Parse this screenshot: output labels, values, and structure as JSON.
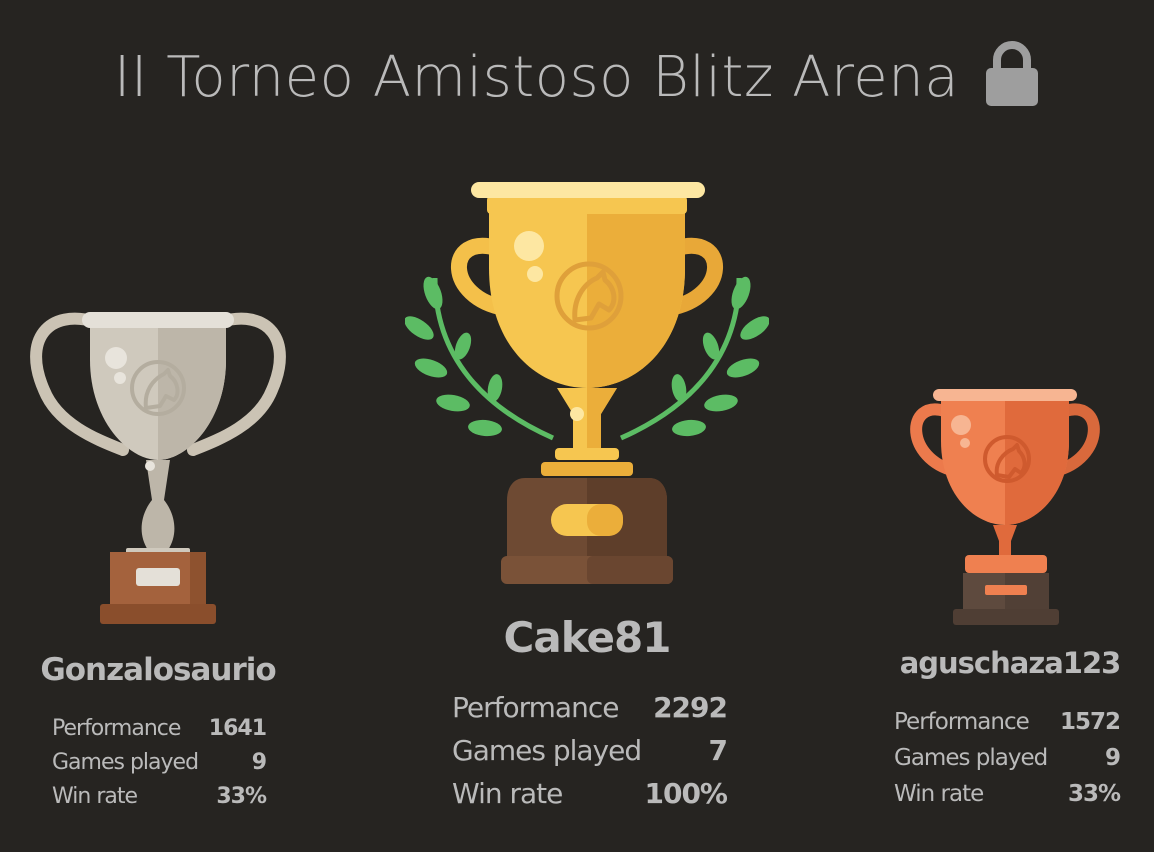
{
  "tournament": {
    "title": "II Torneo Amistoso Blitz Arena",
    "lock_icon": "lock-icon"
  },
  "podium": [
    {
      "place": 2,
      "trophy_icon": "silver-trophy-icon",
      "player": "Gonzalosaurio",
      "stats": {
        "performance_label": "Performance",
        "performance": "1641",
        "games_label": "Games played",
        "games": "9",
        "winrate_label": "Win rate",
        "winrate": "33%"
      }
    },
    {
      "place": 1,
      "trophy_icon": "gold-trophy-icon",
      "player": "Cake81",
      "stats": {
        "performance_label": "Performance",
        "performance": "2292",
        "games_label": "Games played",
        "games": "7",
        "winrate_label": "Win rate",
        "winrate": "100%"
      }
    },
    {
      "place": 3,
      "trophy_icon": "bronze-trophy-icon",
      "player": "aguschaza123",
      "stats": {
        "performance_label": "Performance",
        "performance": "1572",
        "games_label": "Games played",
        "games": "9",
        "winrate_label": "Win rate",
        "winrate": "33%"
      }
    }
  ],
  "colors": {
    "background": "#262421",
    "text": "#bababa",
    "gold": "#f4c04a",
    "silver": "#cfc8bc",
    "bronze": "#ec7a4c",
    "laurel": "#5cbc64"
  }
}
